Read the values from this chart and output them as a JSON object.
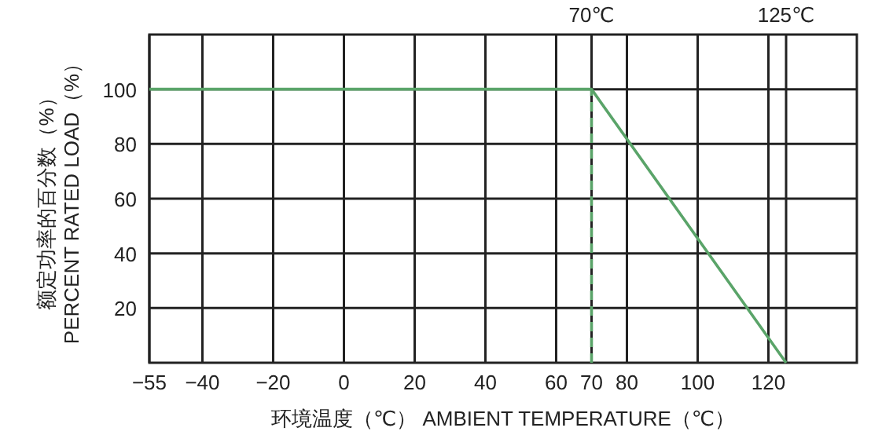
{
  "chart_data": {
    "type": "line",
    "xlabel": "环境温度（℃） AMBIENT TEMPERATURE（℃）",
    "ylabel": "额定功率的百分数（%）\nPERCENT RATED LOAD（%）",
    "series": [
      {
        "color": "#5aa469",
        "x": [
          -55,
          70,
          125
        ],
        "values": [
          100,
          100,
          0
        ],
        "line_style": "solid"
      },
      {
        "color": "#5aa469",
        "x": [
          70,
          70
        ],
        "values": [
          0,
          100
        ],
        "line_style": "dashed"
      }
    ],
    "xlim": [
      -55,
      145
    ],
    "ylim": [
      0,
      120
    ],
    "xticks": [
      -55,
      -40,
      -20,
      0,
      20,
      40,
      60,
      70,
      80,
      100,
      120
    ],
    "x2lim": [
      -55,
      145
    ],
    "x2ticks": [
      {
        "value": 70,
        "label": "70℃"
      },
      {
        "value": 125,
        "label": "125℃"
      }
    ],
    "yticks": [
      20,
      40,
      60,
      80,
      100
    ],
    "grid": true,
    "marker": "none"
  }
}
